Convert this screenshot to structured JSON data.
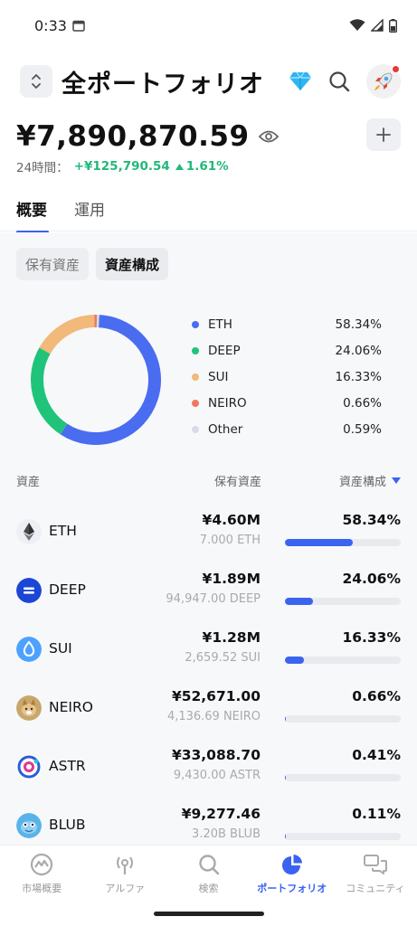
{
  "status_bar": {
    "time": "0:33"
  },
  "header": {
    "title": "全ポートフォリオ"
  },
  "summary": {
    "total_value": "¥7,890,870.59",
    "change_label": "24時間：",
    "change_amount": "+¥125,790.54",
    "change_percent": "1.61%"
  },
  "tabs": [
    {
      "label": "概要",
      "active": true
    },
    {
      "label": "運用",
      "active": false
    }
  ],
  "chips": [
    {
      "label": "保有資産",
      "active": false
    },
    {
      "label": "資産構成",
      "active": true
    }
  ],
  "chart_data": {
    "type": "pie",
    "donut": true,
    "categories": [
      "ETH",
      "DEEP",
      "SUI",
      "NEIRO",
      "Other"
    ],
    "values": [
      58.34,
      24.06,
      16.33,
      0.66,
      0.59
    ],
    "labels": [
      "58.34%",
      "24.06%",
      "16.33%",
      "0.66%",
      "0.59%"
    ],
    "colors": [
      "#4a6cf0",
      "#1fc47a",
      "#f1b97a",
      "#ef7860",
      "#d6dbe6"
    ],
    "legend_position": "right"
  },
  "table": {
    "headers": {
      "asset": "資産",
      "holding": "保有資産",
      "composition": "資産構成"
    },
    "rows": [
      {
        "symbol": "ETH",
        "value": "¥4.60M",
        "amount": "7.000 ETH",
        "percent": "58.34%",
        "share": 0.5834,
        "icon": "eth-icon"
      },
      {
        "symbol": "DEEP",
        "value": "¥1.89M",
        "amount": "94,947.00 DEEP",
        "percent": "24.06%",
        "share": 0.2406,
        "icon": "deep-icon"
      },
      {
        "symbol": "SUI",
        "value": "¥1.28M",
        "amount": "2,659.52 SUI",
        "percent": "16.33%",
        "share": 0.1633,
        "icon": "sui-icon"
      },
      {
        "symbol": "NEIRO",
        "value": "¥52,671.00",
        "amount": "4,136.69 NEIRO",
        "percent": "0.66%",
        "share": 0.0066,
        "icon": "neiro-icon"
      },
      {
        "symbol": "ASTR",
        "value": "¥33,088.70",
        "amount": "9,430.00 ASTR",
        "percent": "0.41%",
        "share": 0.0041,
        "icon": "astr-icon"
      },
      {
        "symbol": "BLUB",
        "value": "¥9,277.46",
        "amount": "3.20B BLUB",
        "percent": "0.11%",
        "share": 0.0011,
        "icon": "blub-icon"
      }
    ]
  },
  "bottom_nav": [
    {
      "label": "市場概要",
      "icon": "market-icon",
      "active": false
    },
    {
      "label": "アルファ",
      "icon": "alpha-icon",
      "active": false
    },
    {
      "label": "検索",
      "icon": "search-icon",
      "active": false
    },
    {
      "label": "ポートフォリオ",
      "icon": "portfolio-icon",
      "active": true
    },
    {
      "label": "コミュニティ",
      "icon": "community-icon",
      "active": false
    }
  ],
  "colors": {
    "accent": "#3a63f0",
    "positive": "#21b978"
  }
}
